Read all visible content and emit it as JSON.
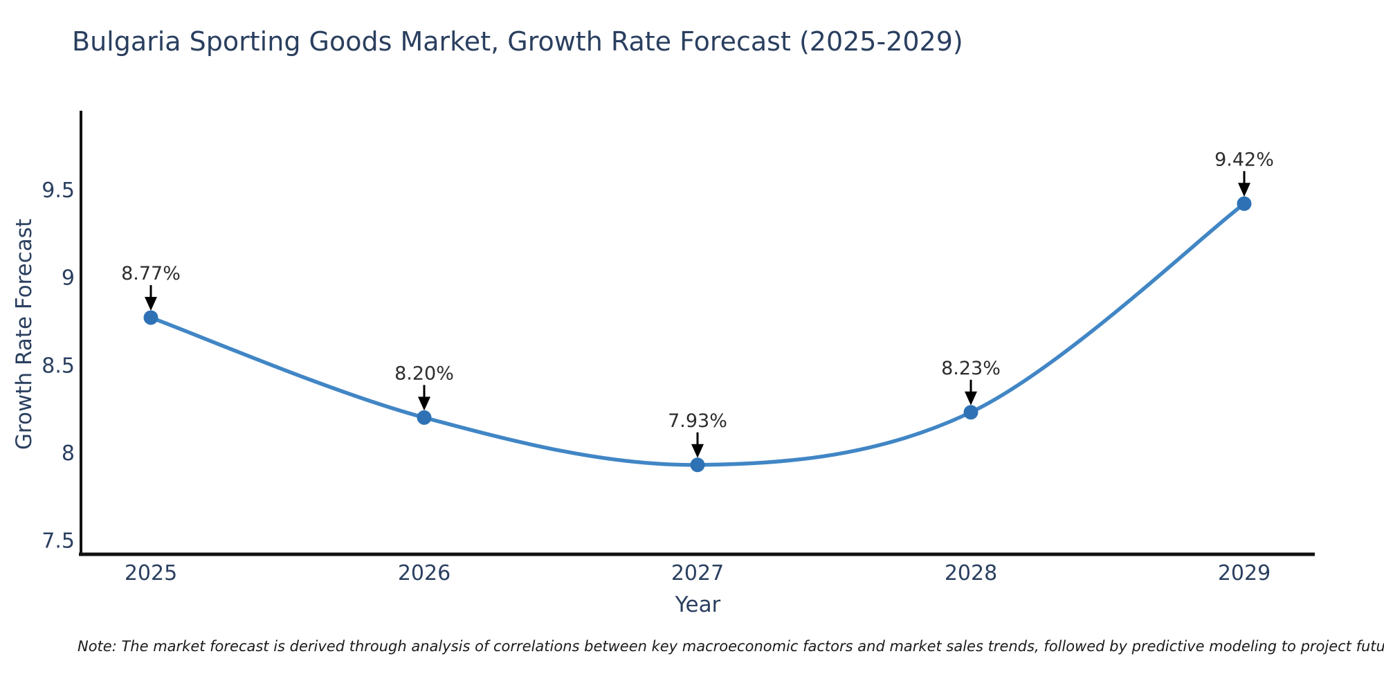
{
  "footnote": "Note: The market forecast is derived through analysis of correlations between key macroeconomic factors and market sales trends, followed by predictive modeling to project future sales",
  "chart_data": {
    "type": "line",
    "title": "Bulgaria Sporting Goods Market, Growth Rate Forecast (2025-2029)",
    "xlabel": "Year",
    "ylabel": "Growth Rate Forecast",
    "categories": [
      "2025",
      "2026",
      "2027",
      "2028",
      "2029"
    ],
    "values": [
      8.77,
      8.2,
      7.93,
      8.23,
      9.42
    ],
    "point_labels": [
      "8.77%",
      "8.20%",
      "7.93%",
      "8.23%",
      "9.42%"
    ],
    "ytick_labels": [
      "7.5",
      "8",
      "8.5",
      "9",
      "9.5"
    ],
    "ytick_values": [
      7.5,
      8.0,
      8.5,
      9.0,
      9.5
    ],
    "ylim": [
      7.42,
      9.95
    ],
    "grid": false,
    "legend_position": "none",
    "line_shape": "spline",
    "annotations_have_arrows": true,
    "colors": {
      "line": "#4186c5",
      "marker": "#2e72b5",
      "axis": "#111111",
      "tick_text": "#2a3f5f",
      "annotation_text": "#2d2d2d",
      "arrow": "#000000",
      "background": "#ffffff"
    }
  }
}
